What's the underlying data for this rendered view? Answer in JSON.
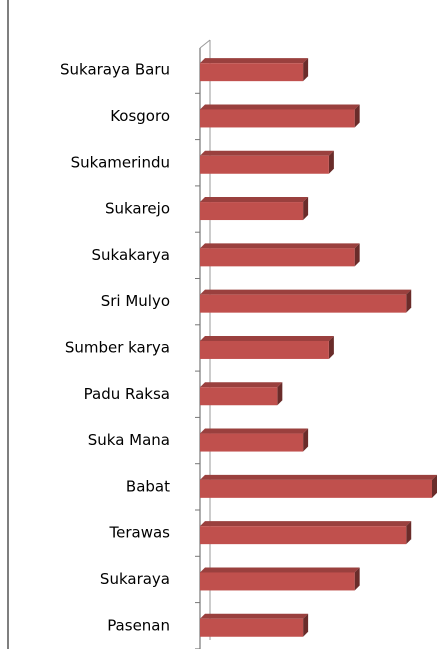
{
  "chart_data": {
    "type": "bar",
    "orientation": "horizontal",
    "categories": [
      "Sukaraya Baru",
      "Kosgoro",
      "Sukamerindu",
      "Sukarejo",
      "Sukakarya",
      "Sri Mulyo",
      "Sumber karya",
      "Padu Raksa",
      "Suka Mana",
      "Babat",
      "Terawas",
      "Sukaraya",
      "Pasenan"
    ],
    "values": [
      4,
      6,
      5,
      4,
      6,
      8,
      5,
      3,
      4,
      9,
      8,
      6,
      4
    ],
    "color": "#c0504d",
    "xlim": [
      0,
      9
    ]
  }
}
